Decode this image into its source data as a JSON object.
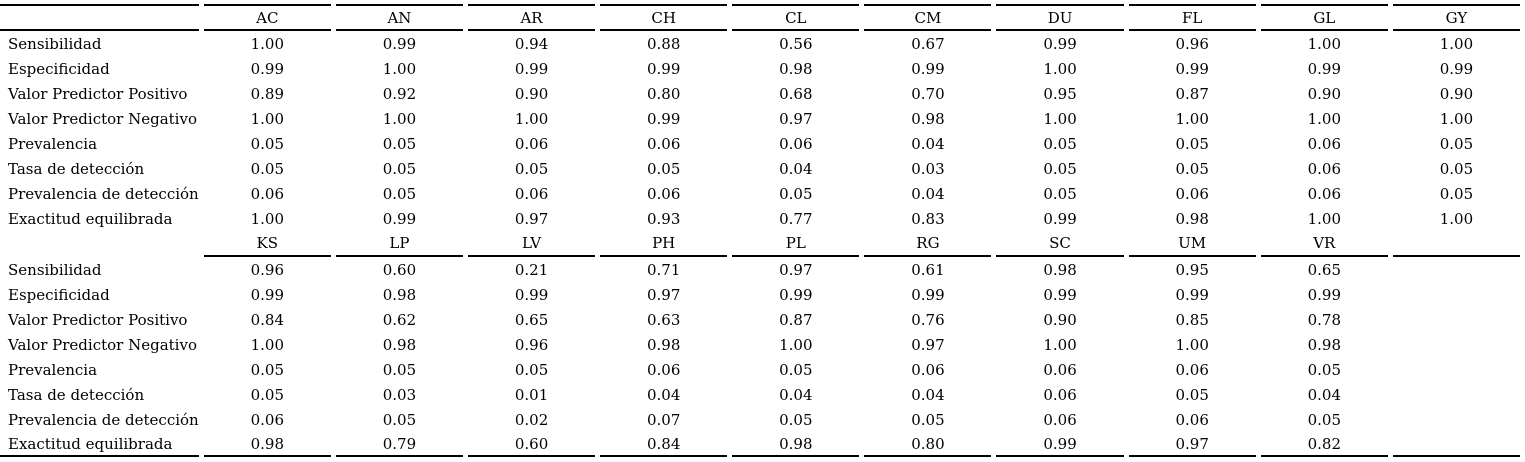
{
  "colors": {
    "background": "#ffffff",
    "text": "#000000",
    "rule_line": "#000000"
  },
  "table": {
    "kind": "classification-metrics-by-class",
    "sections": [
      {
        "columns": [
          "AC",
          "AN",
          "AR",
          "CH",
          "CL",
          "CM",
          "DU",
          "FL",
          "GL",
          "GY"
        ],
        "rows": [
          {
            "label": "Sensibilidad",
            "values": [
              "1.00",
              "0.99",
              "0.94",
              "0.88",
              "0.56",
              "0.67",
              "0.99",
              "0.96",
              "1.00",
              "1.00"
            ]
          },
          {
            "label": "Especificidad",
            "values": [
              "0.99",
              "1.00",
              "0.99",
              "0.99",
              "0.98",
              "0.99",
              "1.00",
              "0.99",
              "0.99",
              "0.99"
            ]
          },
          {
            "label": "Valor Predictor Positivo",
            "values": [
              "0.89",
              "0.92",
              "0.90",
              "0.80",
              "0.68",
              "0.70",
              "0.95",
              "0.87",
              "0.90",
              "0.90"
            ]
          },
          {
            "label": "Valor Predictor Negativo",
            "values": [
              "1.00",
              "1.00",
              "1.00",
              "0.99",
              "0.97",
              "0.98",
              "1.00",
              "1.00",
              "1.00",
              "1.00"
            ]
          },
          {
            "label": "Prevalencia",
            "values": [
              "0.05",
              "0.05",
              "0.06",
              "0.06",
              "0.06",
              "0.04",
              "0.05",
              "0.05",
              "0.06",
              "0.05"
            ]
          },
          {
            "label": "Tasa de detección",
            "values": [
              "0.05",
              "0.05",
              "0.05",
              "0.05",
              "0.04",
              "0.03",
              "0.05",
              "0.05",
              "0.06",
              "0.05"
            ]
          },
          {
            "label": "Prevalencia de detección",
            "values": [
              "0.06",
              "0.05",
              "0.06",
              "0.06",
              "0.05",
              "0.04",
              "0.05",
              "0.06",
              "0.06",
              "0.05"
            ]
          },
          {
            "label": "Exactitud equilibrada",
            "values": [
              "1.00",
              "0.99",
              "0.97",
              "0.93",
              "0.77",
              "0.83",
              "0.99",
              "0.98",
              "1.00",
              "1.00"
            ]
          }
        ]
      },
      {
        "columns": [
          "KS",
          "LP",
          "LV",
          "PH",
          "PL",
          "RG",
          "SC",
          "UM",
          "VR",
          ""
        ],
        "rows": [
          {
            "label": "Sensibilidad",
            "values": [
              "0.96",
              "0.60",
              "0.21",
              "0.71",
              "0.97",
              "0.61",
              "0.98",
              "0.95",
              "0.65"
            ]
          },
          {
            "label": "Especificidad",
            "values": [
              "0.99",
              "0.98",
              "0.99",
              "0.97",
              "0.99",
              "0.99",
              "0.99",
              "0.99",
              "0.99"
            ]
          },
          {
            "label": "Valor Predictor Positivo",
            "values": [
              "0.84",
              "0.62",
              "0.65",
              "0.63",
              "0.87",
              "0.76",
              "0.90",
              "0.85",
              "0.78"
            ]
          },
          {
            "label": "Valor Predictor Negativo",
            "values": [
              "1.00",
              "0.98",
              "0.96",
              "0.98",
              "1.00",
              "0.97",
              "1.00",
              "1.00",
              "0.98"
            ]
          },
          {
            "label": "Prevalencia",
            "values": [
              "0.05",
              "0.05",
              "0.05",
              "0.06",
              "0.05",
              "0.06",
              "0.06",
              "0.06",
              "0.05"
            ]
          },
          {
            "label": "Tasa de detección",
            "values": [
              "0.05",
              "0.03",
              "0.01",
              "0.04",
              "0.04",
              "0.04",
              "0.06",
              "0.05",
              "0.04"
            ]
          },
          {
            "label": "Prevalencia de detección",
            "values": [
              "0.06",
              "0.05",
              "0.02",
              "0.07",
              "0.05",
              "0.05",
              "0.06",
              "0.06",
              "0.05"
            ]
          },
          {
            "label": "Exactitud equilibrada",
            "values": [
              "0.98",
              "0.79",
              "0.60",
              "0.84",
              "0.98",
              "0.80",
              "0.99",
              "0.97",
              "0.82"
            ]
          }
        ]
      }
    ]
  }
}
